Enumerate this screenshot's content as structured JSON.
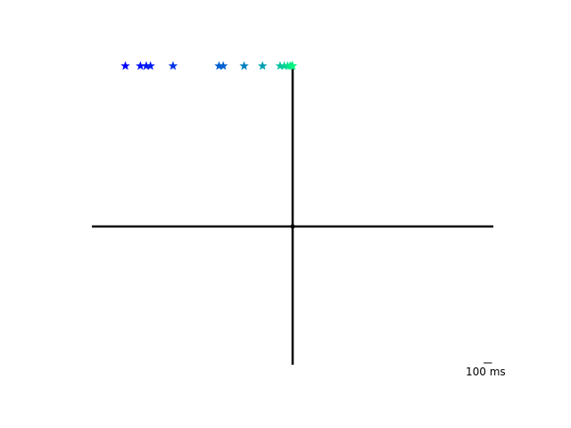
{
  "chart_data": {
    "type": "scatter",
    "title": "",
    "xlabel": "",
    "ylabel": "",
    "axes_visible": false,
    "grid": false,
    "legend": "none",
    "xlim": [
      -2400,
      2400
    ],
    "ylim": [
      -1000,
      1000
    ],
    "axis_color": "#000000",
    "crosshair": {
      "x_range": [
        -2400,
        2400
      ],
      "y_range": [
        -1000,
        800
      ]
    },
    "series": [
      {
        "marker": "star",
        "colormap": "winter",
        "points": [
          {
            "x": -2000,
            "y": 800,
            "color": "#0000ff"
          },
          {
            "x": -1820,
            "y": 800,
            "color": "#0011f7"
          },
          {
            "x": -1750,
            "y": 800,
            "color": "#0018f3"
          },
          {
            "x": -1700,
            "y": 800,
            "color": "#001ef0"
          },
          {
            "x": -1430,
            "y": 800,
            "color": "#0033e5"
          },
          {
            "x": -880,
            "y": 800,
            "color": "#005dd1"
          },
          {
            "x": -830,
            "y": 800,
            "color": "#0062cf"
          },
          {
            "x": -580,
            "y": 800,
            "color": "#0080bf"
          },
          {
            "x": -360,
            "y": 800,
            "color": "#009fb0"
          },
          {
            "x": -150,
            "y": 800,
            "color": "#00c49d"
          },
          {
            "x": -100,
            "y": 800,
            "color": "#00d196"
          },
          {
            "x": -60,
            "y": 800,
            "color": "#00dd91"
          },
          {
            "x": -30,
            "y": 800,
            "color": "#00e68d"
          },
          {
            "x": -10,
            "y": 800,
            "color": "#00ee88"
          },
          {
            "x": 0,
            "y": 800,
            "color": "#00f581"
          }
        ]
      }
    ],
    "scalebar": {
      "value": 100,
      "label": "100 ms",
      "position": "bottom-right"
    }
  }
}
